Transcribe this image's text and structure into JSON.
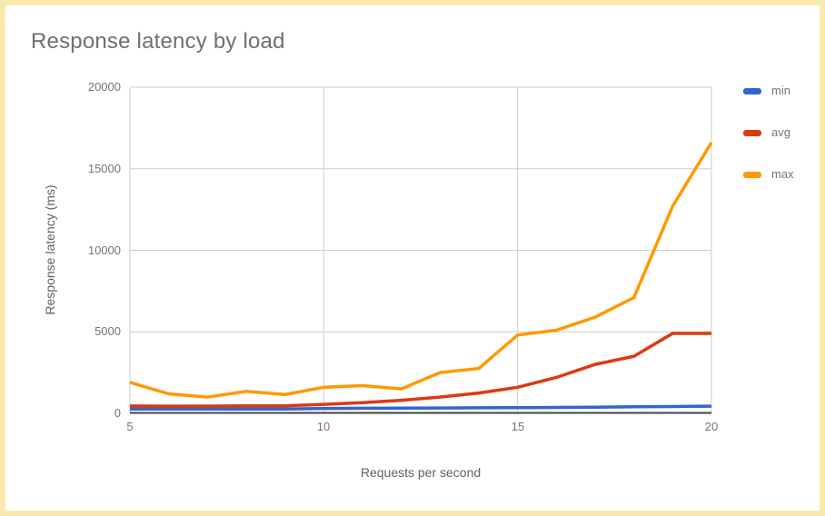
{
  "card": {
    "border_color": "#F9E9AE",
    "background": "#FFFFFF"
  },
  "chart_data": {
    "type": "line",
    "title": "Response latency by load",
    "xlabel": "Requests per second",
    "ylabel": "Response latency (ms)",
    "xlim": [
      5,
      20
    ],
    "ylim": [
      0,
      20000
    ],
    "grid": true,
    "legend_position": "right",
    "x": [
      5,
      6,
      7,
      8,
      9,
      10,
      11,
      12,
      13,
      14,
      15,
      16,
      17,
      18,
      19,
      20
    ],
    "series": [
      {
        "name": "min",
        "color": "#3366CC",
        "values": [
          260,
          260,
          260,
          270,
          270,
          300,
          310,
          320,
          330,
          340,
          350,
          360,
          380,
          400,
          420,
          440
        ]
      },
      {
        "name": "avg",
        "color": "#DC3912",
        "values": [
          450,
          440,
          445,
          455,
          465,
          550,
          650,
          800,
          1000,
          1250,
          1600,
          2200,
          3000,
          3500,
          4900,
          4900
        ]
      },
      {
        "name": "max",
        "color": "#FF9900",
        "values": [
          1900,
          1200,
          1000,
          1350,
          1150,
          1600,
          1700,
          1500,
          2500,
          2750,
          4800,
          5100,
          5900,
          7100,
          12700,
          16600
        ]
      }
    ],
    "yticks": [
      "20000",
      "15000",
      "10000",
      "5000",
      "0"
    ],
    "yticks_values": [
      20000,
      15000,
      10000,
      5000,
      0
    ],
    "xticks": [
      "5",
      "10",
      "15",
      "20"
    ],
    "xticks_values": [
      5,
      10,
      15,
      20
    ],
    "gridline_color": "#CCCCCC",
    "axis_line_color": "#424242"
  },
  "legend": {
    "items": [
      {
        "label": "min",
        "color": "#3366CC"
      },
      {
        "label": "avg",
        "color": "#DC3912"
      },
      {
        "label": "max",
        "color": "#FF9900"
      }
    ]
  }
}
